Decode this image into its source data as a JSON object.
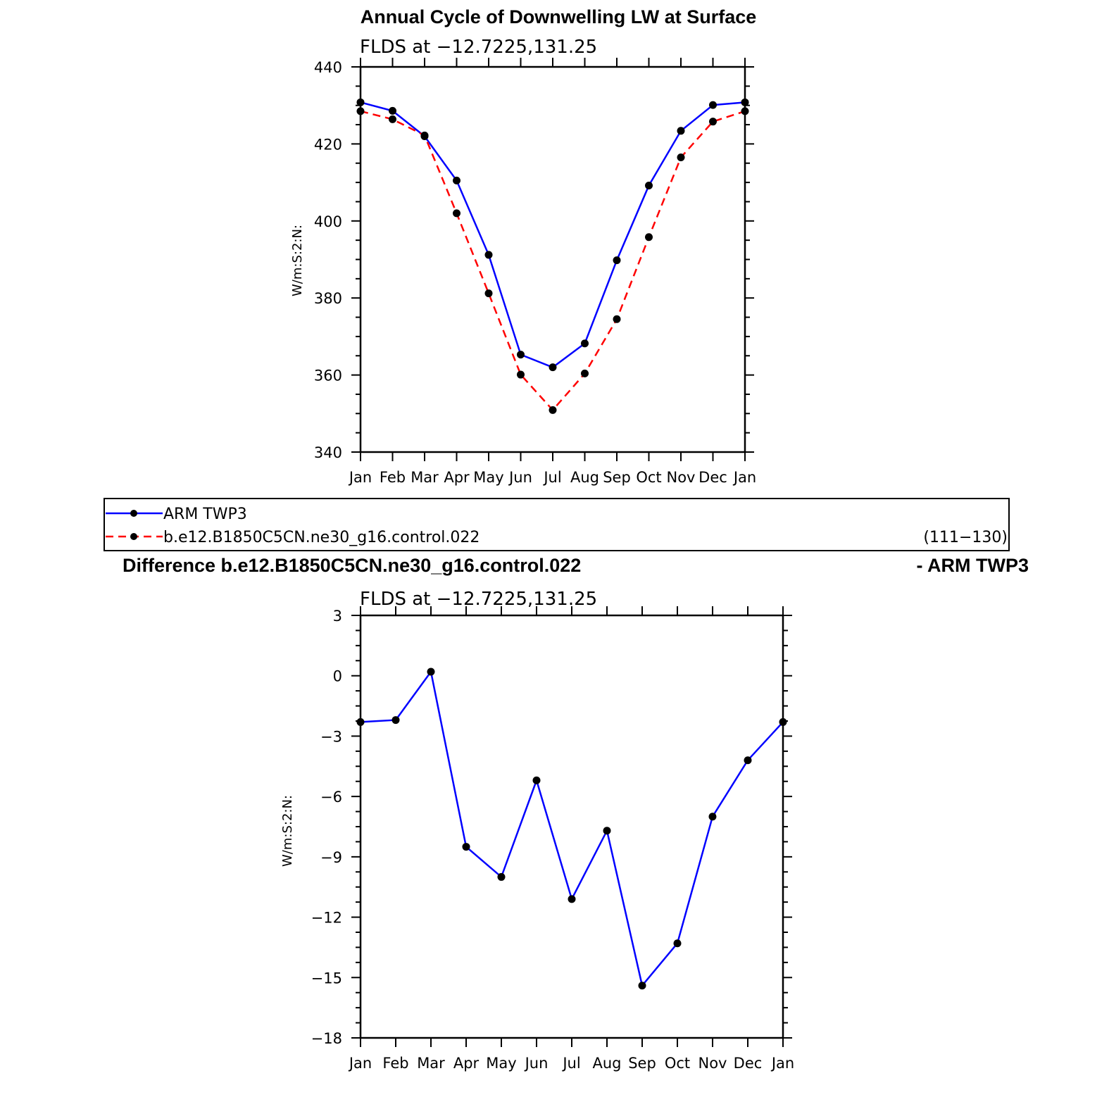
{
  "chart_data": [
    {
      "type": "line",
      "title": "Annual Cycle of Downwelling LW at Surface",
      "subtitle": "FLDS at −12.7225,131.25",
      "ylabel": "W/m:S:2:N:",
      "categories": [
        "Jan",
        "Feb",
        "Mar",
        "Apr",
        "May",
        "Jun",
        "Jul",
        "Aug",
        "Sep",
        "Oct",
        "Nov",
        "Dec",
        "Jan"
      ],
      "ylim": [
        340,
        440
      ],
      "yticks": [
        "340",
        "360",
        "380",
        "400",
        "420",
        "440"
      ],
      "series": [
        {
          "name": "ARM TWP3",
          "color": "#0000ff",
          "dash": "solid",
          "values": [
            430.8,
            428.6,
            422.0,
            410.5,
            391.2,
            365.3,
            362.0,
            368.2,
            389.8,
            409.2,
            423.4,
            430.1,
            430.8
          ]
        },
        {
          "name": "b.e12.B1850C5CN.ne30_g16.control.022",
          "color": "#ff0000",
          "dash": "dashed",
          "values": [
            428.5,
            426.4,
            422.2,
            402.0,
            381.2,
            360.1,
            350.9,
            360.4,
            374.5,
            395.8,
            416.5,
            425.8,
            428.5
          ]
        }
      ],
      "legend": {
        "placement": "below",
        "entries": [
          "ARM TWP3",
          "b.e12.B1850C5CN.ne30_g16.control.022"
        ],
        "note": "(111−130)"
      }
    },
    {
      "type": "line",
      "title_left": "Difference b.e12.B1850C5CN.ne30_g16.control.022",
      "title_right": "- ARM TWP3",
      "subtitle": "FLDS at −12.7225,131.25",
      "ylabel": "W/m:S:2:N:",
      "categories": [
        "Jan",
        "Feb",
        "Mar",
        "Apr",
        "May",
        "Jun",
        "Jul",
        "Aug",
        "Sep",
        "Oct",
        "Nov",
        "Dec",
        "Jan"
      ],
      "ylim": [
        -18,
        3
      ],
      "yticks": [
        "−18",
        "−15",
        "−12",
        "−9",
        "−6",
        "−3",
        "0",
        "3"
      ],
      "series": [
        {
          "color": "#0000ff",
          "dash": "solid",
          "values": [
            -2.3,
            -2.2,
            0.2,
            -8.5,
            -10.0,
            -5.2,
            -11.1,
            -7.7,
            -15.4,
            -13.3,
            -7.0,
            -4.2,
            -2.3
          ]
        }
      ]
    }
  ]
}
